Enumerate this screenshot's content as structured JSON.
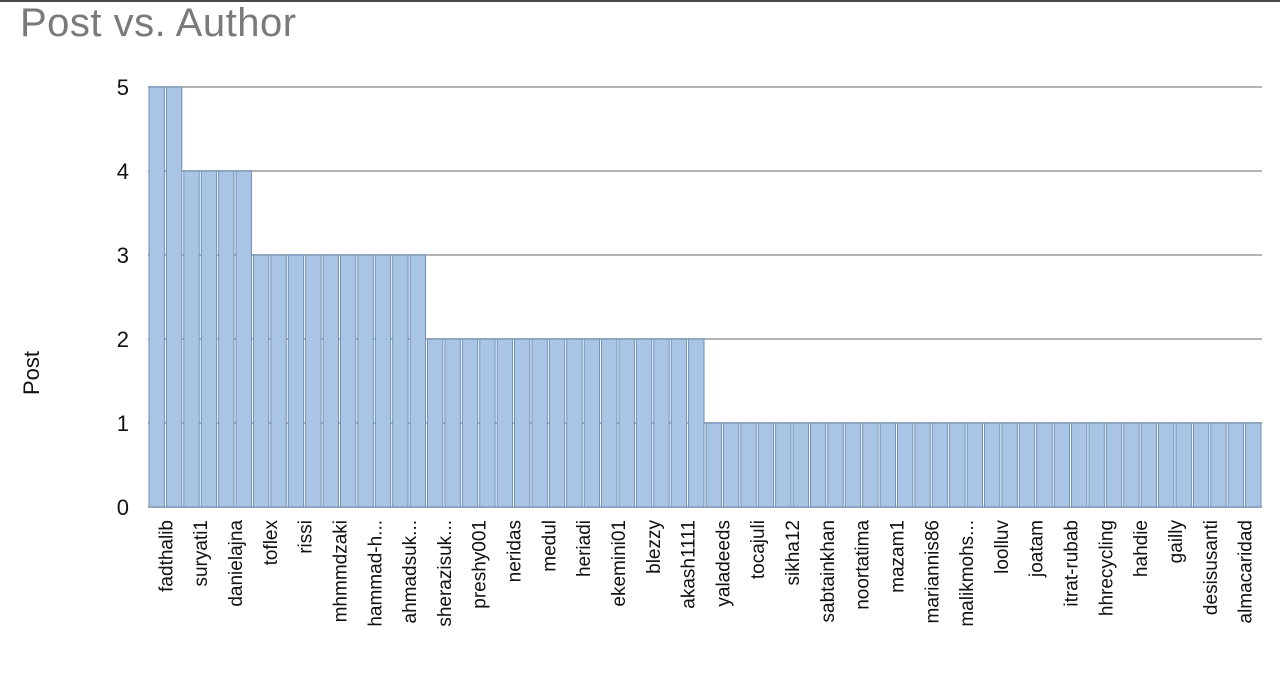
{
  "chart_data": {
    "type": "bar",
    "title": "Post vs. Author",
    "xlabel": "",
    "ylabel": "Post",
    "ylim": [
      0,
      5
    ],
    "yticks": [
      0,
      1,
      2,
      3,
      4,
      5
    ],
    "grid": true,
    "bar_color": "#a9c4e4",
    "bar_edge_color": "#6f90b8",
    "grid_color": "#b3b3b3",
    "categories": [
      "fadthalib",
      "",
      "suryati1",
      "",
      "danielajna",
      "",
      "toflex",
      "",
      "rissi",
      "",
      "mhmmdzaki",
      "",
      "hammad-h...",
      "",
      "ahmadsuk...",
      "",
      "sherazisuk...",
      "",
      "preshy001",
      "",
      "neridas",
      "",
      "medul",
      "",
      "heriadi",
      "",
      "ekemini01",
      "",
      "blezzy",
      "",
      "akash1111",
      "",
      "yaladeeds",
      "",
      "tocajuli",
      "",
      "sikha12",
      "",
      "sabtainkhan",
      "",
      "noortatima",
      "",
      "mazam1",
      "",
      "mariannis86",
      "",
      "malikmohs...",
      "",
      "loolluv",
      "",
      "joatam",
      "",
      "itrat-rubab",
      "",
      "hhrecycling",
      "",
      "hahdie",
      "",
      "gailly",
      "",
      "desisusanti",
      "",
      "almacaridad",
      ""
    ],
    "values": [
      5,
      5,
      4,
      4,
      4,
      4,
      3,
      3,
      3,
      3,
      3,
      3,
      3,
      3,
      3,
      3,
      2,
      2,
      2,
      2,
      2,
      2,
      2,
      2,
      2,
      2,
      2,
      2,
      2,
      2,
      2,
      2,
      1,
      1,
      1,
      1,
      1,
      1,
      1,
      1,
      1,
      1,
      1,
      1,
      1,
      1,
      1,
      1,
      1,
      1,
      1,
      1,
      1,
      1,
      1,
      1,
      1,
      1,
      1,
      1,
      1,
      1,
      1,
      1
    ]
  }
}
